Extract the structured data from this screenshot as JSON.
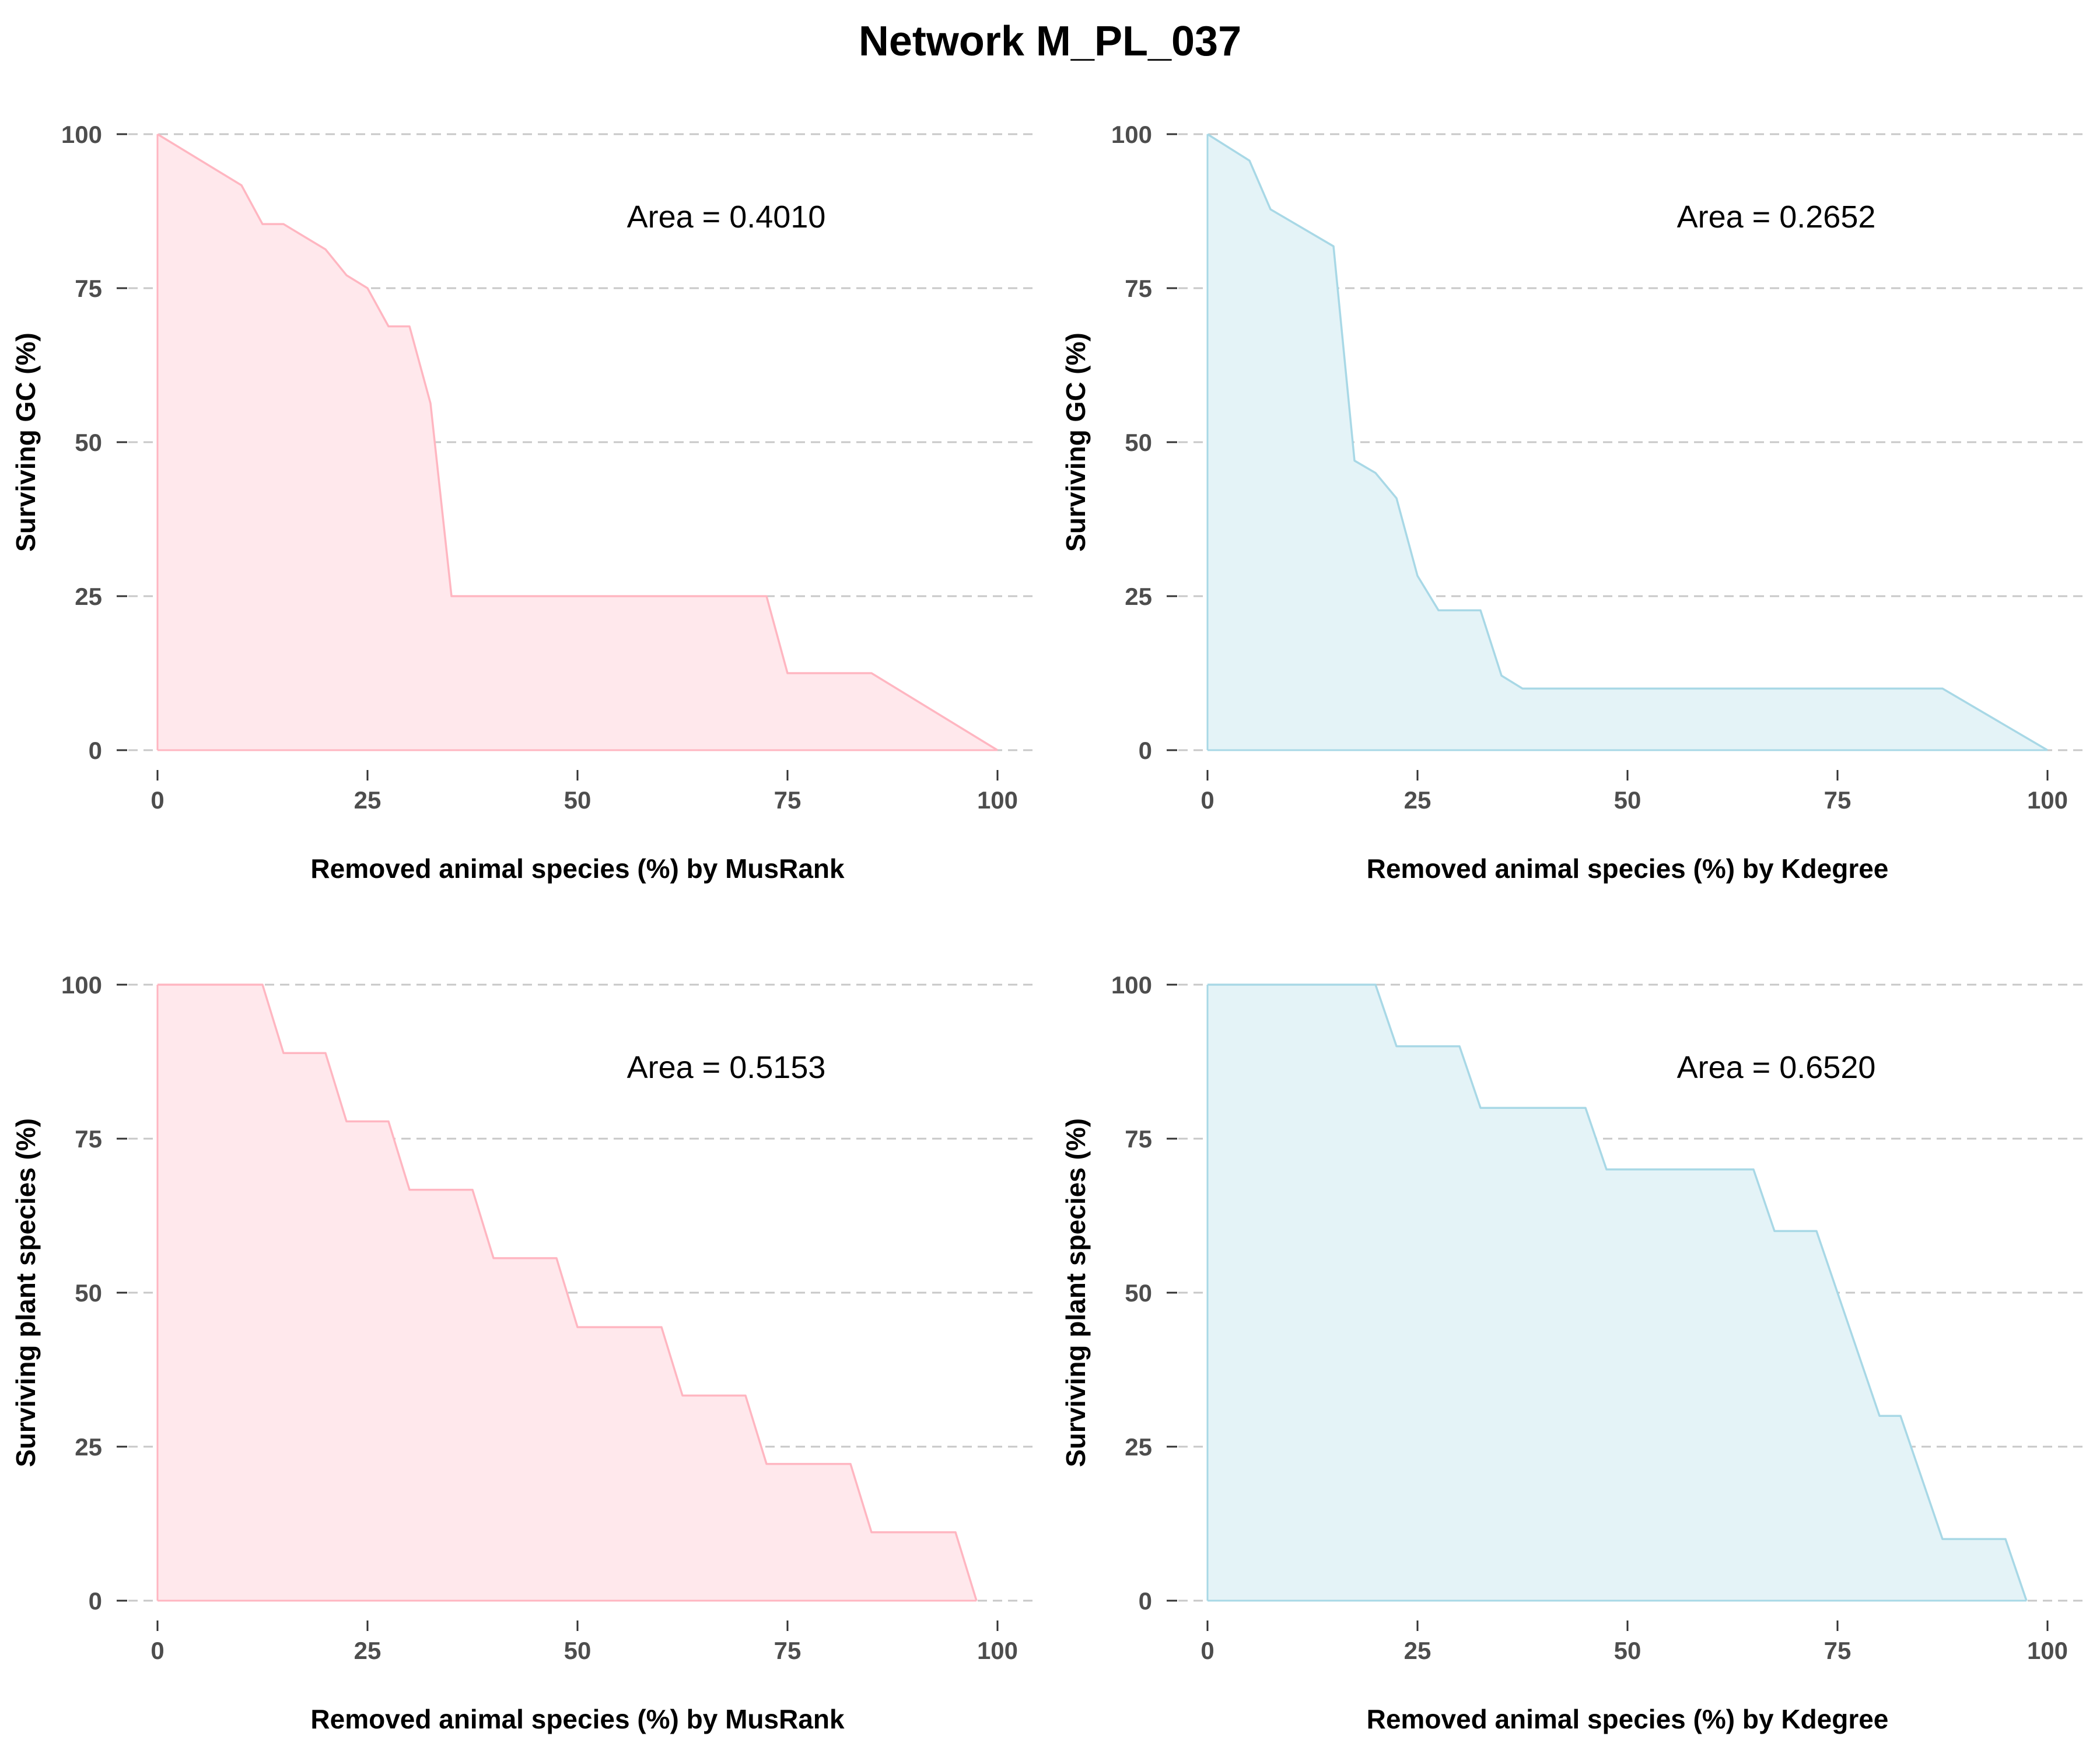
{
  "title": "Network M_PL_037",
  "colors": {
    "musrank_line": "#ffb6c1",
    "musrank_fill": "#ffe8ec",
    "kdegree_line": "#a8d8e6",
    "kdegree_fill": "#e4f3f7"
  },
  "chart_data": [
    {
      "type": "area",
      "xlabel": "Removed animal species (%) by MusRank",
      "ylabel": "Surviving GC (%)",
      "annotation": "Area = 0.4010",
      "xlim": [
        0,
        100
      ],
      "ylim": [
        0,
        100
      ],
      "xticks": [
        "0",
        "25",
        "50",
        "75",
        "100"
      ],
      "yticks": [
        "0",
        "25",
        "50",
        "75",
        "100"
      ],
      "grid": "horizontal dashed",
      "color": "pink",
      "x": [
        0,
        10,
        12.5,
        15,
        20,
        22.5,
        25,
        27.5,
        30,
        32.5,
        35,
        72.5,
        75,
        85,
        100
      ],
      "y": [
        100,
        91.7,
        85.4,
        85.4,
        81.3,
        77.1,
        75,
        68.8,
        68.8,
        56.3,
        25,
        25,
        12.5,
        12.5,
        0
      ]
    },
    {
      "type": "area",
      "xlabel": "Removed animal species (%) by Kdegree",
      "ylabel": "Surviving GC (%)",
      "annotation": "Area = 0.2652",
      "xlim": [
        0,
        100
      ],
      "ylim": [
        0,
        100
      ],
      "xticks": [
        "0",
        "25",
        "50",
        "75",
        "100"
      ],
      "yticks": [
        "0",
        "25",
        "50",
        "75",
        "100"
      ],
      "grid": "horizontal dashed",
      "color": "lightblue",
      "x": [
        0,
        5,
        7.5,
        15,
        17.5,
        20,
        22.5,
        25,
        27.5,
        32.5,
        35,
        37.5,
        87.5,
        100
      ],
      "y": [
        100,
        95.7,
        87.8,
        81.8,
        47,
        45,
        40.9,
        28.3,
        22.7,
        22.7,
        12.1,
        10,
        10,
        0
      ]
    },
    {
      "type": "area",
      "xlabel": "Removed animal species (%) by MusRank",
      "ylabel": "Surviving plant species (%)",
      "annotation": "Area = 0.5153",
      "xlim": [
        0,
        100
      ],
      "ylim": [
        0,
        100
      ],
      "xticks": [
        "0",
        "25",
        "50",
        "75",
        "100"
      ],
      "yticks": [
        "0",
        "25",
        "50",
        "75",
        "100"
      ],
      "grid": "horizontal dashed",
      "color": "pink",
      "x": [
        0,
        12.5,
        15,
        20,
        22.5,
        27.5,
        30,
        37.5,
        40,
        47.5,
        50,
        60,
        62.5,
        70,
        72.5,
        82.5,
        85,
        95,
        97.5
      ],
      "y": [
        100,
        100,
        88.9,
        88.9,
        77.8,
        77.8,
        66.7,
        66.7,
        55.6,
        55.6,
        44.4,
        44.4,
        33.3,
        33.3,
        22.2,
        22.2,
        11.1,
        11.1,
        0
      ]
    },
    {
      "type": "area",
      "xlabel": "Removed animal species (%) by Kdegree",
      "ylabel": "Surviving plant species (%)",
      "annotation": "Area = 0.6520",
      "xlim": [
        0,
        100
      ],
      "ylim": [
        0,
        100
      ],
      "xticks": [
        "0",
        "25",
        "50",
        "75",
        "100"
      ],
      "yticks": [
        "0",
        "25",
        "50",
        "75",
        "100"
      ],
      "grid": "horizontal dashed",
      "color": "lightblue",
      "x": [
        0,
        20,
        22.5,
        30,
        32.5,
        45,
        47.5,
        65,
        67.5,
        72.5,
        80,
        82.5,
        87.5,
        95,
        97.5
      ],
      "y": [
        100,
        100,
        90,
        90,
        80,
        80,
        70,
        70,
        60,
        60,
        30,
        30,
        10,
        10,
        0
      ]
    }
  ]
}
